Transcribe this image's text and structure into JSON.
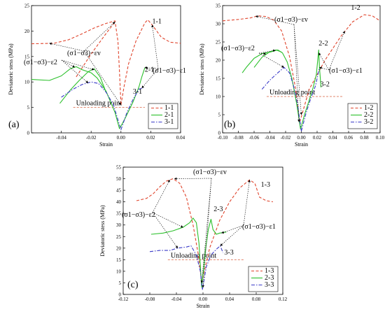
{
  "colors": {
    "series1": "#e0442c",
    "series2": "#2cc02c",
    "series3": "#3a3ac8",
    "unload": "#d86040"
  },
  "annotations": {
    "eps2": "(σ1−σ3)−ε2",
    "epsv": "(σ1−σ3)−εv",
    "eps1": "(σ1−σ3)−ε1",
    "unloading": "Unloading point"
  },
  "chart_data": [
    {
      "type": "line",
      "panel_label": "(a)",
      "xlabel": "Strain",
      "ylabel": "Deviatoric stess (MPa)",
      "xlim": [
        -0.06,
        0.04
      ],
      "ylim": [
        0,
        25
      ],
      "xticks": [
        "-0.04",
        "-0.02",
        "0.00",
        "0.02",
        "0.04"
      ],
      "xtick_values": [
        -0.04,
        -0.02,
        0.0,
        0.02,
        0.04
      ],
      "yticks": [
        "0",
        "5",
        "10",
        "15",
        "20",
        "25"
      ],
      "ytick_values": [
        0,
        5,
        10,
        15,
        20,
        25
      ],
      "unloading_level": 5,
      "legend": [
        "1-1",
        "2-1",
        "3-1"
      ],
      "curve_labels": [
        {
          "text": "1-1",
          "x": 0.021,
          "y": 21.5
        },
        {
          "text": "2-1",
          "x": 0.016,
          "y": 12.0
        },
        {
          "text": "3-1",
          "x": 0.008,
          "y": 7.7
        }
      ],
      "series": [
        {
          "name": "1-1",
          "style": "dash",
          "color": "series1",
          "segments": [
            [
              [
                -0.06,
                17.5
              ],
              [
                -0.045,
                17.6
              ],
              [
                -0.035,
                18.3
              ],
              [
                -0.025,
                19.6
              ],
              [
                -0.018,
                20.6
              ],
              [
                -0.01,
                21.5
              ],
              [
                -0.004,
                22.0
              ],
              [
                -0.002,
                18.0
              ],
              [
                -0.001,
                12.0
              ],
              [
                0.0,
                5.5
              ]
            ],
            [
              [
                -0.03,
                11.0
              ],
              [
                -0.02,
                15.5
              ],
              [
                -0.01,
                19.5
              ],
              [
                -0.004,
                21.8
              ]
            ],
            [
              [
                0.0,
                5.5
              ],
              [
                0.002,
                9.0
              ],
              [
                0.005,
                13.5
              ],
              [
                0.01,
                18.0
              ],
              [
                0.016,
                21.6
              ],
              [
                0.018,
                22.2
              ],
              [
                0.021,
                21.2
              ],
              [
                0.027,
                18.8
              ],
              [
                0.033,
                17.8
              ],
              [
                0.04,
                17.6
              ]
            ]
          ]
        },
        {
          "name": "2-1",
          "style": "solid",
          "color": "series2",
          "segments": [
            [
              [
                -0.06,
                10.5
              ],
              [
                -0.048,
                10.3
              ],
              [
                -0.04,
                11.2
              ],
              [
                -0.034,
                12.6
              ],
              [
                -0.03,
                13.0
              ],
              [
                -0.026,
                12.4
              ],
              [
                -0.02,
                11.8
              ],
              [
                -0.016,
                10.8
              ],
              [
                -0.01,
                8.2
              ],
              [
                -0.004,
                4.0
              ],
              [
                -0.001,
                0.8
              ]
            ],
            [
              [
                -0.041,
                5.8
              ],
              [
                -0.034,
                8.4
              ],
              [
                -0.028,
                10.3
              ],
              [
                -0.022,
                12.0
              ],
              [
                -0.018,
                12.6
              ],
              [
                -0.014,
                11.0
              ],
              [
                -0.01,
                8.0
              ]
            ],
            [
              [
                -0.001,
                0.8
              ],
              [
                0.003,
                3.0
              ],
              [
                0.008,
                6.0
              ],
              [
                0.012,
                9.0
              ],
              [
                0.014,
                11.0
              ],
              [
                0.016,
                12.8
              ]
            ]
          ]
        },
        {
          "name": "3-1",
          "style": "dashdot",
          "color": "series3",
          "segments": [
            [
              [
                -0.04,
                7.0
              ],
              [
                -0.032,
                8.6
              ],
              [
                -0.026,
                9.5
              ],
              [
                -0.02,
                10.0
              ],
              [
                -0.015,
                9.7
              ],
              [
                -0.01,
                8.0
              ],
              [
                -0.005,
                5.5
              ],
              [
                0.0,
                0.6
              ]
            ],
            [
              [
                0.0,
                0.6
              ],
              [
                0.004,
                4.0
              ],
              [
                0.008,
                6.5
              ],
              [
                0.012,
                8.6
              ],
              [
                0.015,
                8.8
              ]
            ]
          ]
        }
      ]
    },
    {
      "type": "line",
      "panel_label": "(b)",
      "xlabel": "Strain",
      "ylabel": "Deviatoric stess (MPa)",
      "xlim": [
        -0.1,
        0.1
      ],
      "ylim": [
        0,
        35
      ],
      "xticks": [
        "-0.10",
        "-0.08",
        "-0.06",
        "-0.04",
        "-0.02",
        "0.00",
        "0.02",
        "0.04",
        "0.06",
        "0.08",
        "0.10"
      ],
      "xtick_values": [
        -0.1,
        -0.08,
        -0.06,
        -0.04,
        -0.02,
        0.0,
        0.02,
        0.04,
        0.06,
        0.08,
        0.1
      ],
      "yticks": [
        "0",
        "5",
        "10",
        "15",
        "20",
        "25",
        "30",
        "35"
      ],
      "ytick_values": [
        0,
        5,
        10,
        15,
        20,
        25,
        30,
        35
      ],
      "unloading_level": 10,
      "legend": [
        "1-2",
        "2-2",
        "3-2"
      ],
      "curve_labels": [
        {
          "text": "1-2",
          "x": 0.063,
          "y": 33.8
        },
        {
          "text": "2-2",
          "x": 0.022,
          "y": 24.0
        },
        {
          "text": "3-2",
          "x": 0.024,
          "y": 12.8
        }
      ],
      "series": [
        {
          "name": "1-2",
          "style": "dash",
          "color": "series1",
          "segments": [
            [
              [
                -0.1,
                30.8
              ],
              [
                -0.08,
                31.2
              ],
              [
                -0.065,
                31.6
              ],
              [
                -0.055,
                32.2
              ],
              [
                -0.045,
                32.0
              ],
              [
                -0.035,
                31.0
              ],
              [
                -0.025,
                28.0
              ],
              [
                -0.015,
                21.0
              ],
              [
                -0.008,
                13.0
              ],
              [
                -0.002,
                3.0
              ]
            ],
            [
              [
                -0.002,
                3.0
              ],
              [
                0.01,
                12.0
              ],
              [
                0.03,
                20.0
              ],
              [
                0.05,
                26.5
              ],
              [
                0.065,
                30.5
              ],
              [
                0.08,
                32.5
              ],
              [
                0.09,
                32.2
              ],
              [
                0.1,
                30.8
              ]
            ]
          ]
        },
        {
          "name": "2-2",
          "style": "solid",
          "color": "series2",
          "segments": [
            [
              [
                -0.075,
                16.5
              ],
              [
                -0.07,
                18.0
              ],
              [
                -0.06,
                20.5
              ],
              [
                -0.05,
                21.8
              ],
              [
                -0.04,
                22.2
              ],
              [
                -0.03,
                22.8
              ],
              [
                -0.024,
                22.0
              ],
              [
                -0.018,
                19.5
              ],
              [
                -0.012,
                15.0
              ],
              [
                -0.006,
                8.0
              ],
              [
                -0.001,
                1.0
              ]
            ],
            [
              [
                -0.06,
                18.0
              ],
              [
                -0.05,
                20.8
              ],
              [
                -0.04,
                22.3
              ],
              [
                -0.032,
                22.8
              ],
              [
                -0.025,
                22.2
              ]
            ],
            [
              [
                -0.001,
                1.0
              ],
              [
                0.004,
                5.0
              ],
              [
                0.01,
                9.0
              ],
              [
                0.015,
                12.5
              ],
              [
                0.019,
                16.0
              ],
              [
                0.022,
                22.8
              ],
              [
                0.023,
                18.0
              ],
              [
                0.025,
                12.5
              ]
            ]
          ]
        },
        {
          "name": "3-2",
          "style": "dashdot",
          "color": "series3",
          "segments": [
            [
              [
                -0.05,
                12.0
              ],
              [
                -0.04,
                14.5
              ],
              [
                -0.03,
                16.5
              ],
              [
                -0.022,
                18.0
              ],
              [
                -0.015,
                16.5
              ],
              [
                -0.01,
                13.0
              ],
              [
                -0.005,
                8.0
              ],
              [
                0.0,
                0.5
              ]
            ],
            [
              [
                0.0,
                0.5
              ],
              [
                0.006,
                5.5
              ],
              [
                0.012,
                9.5
              ],
              [
                0.018,
                13.0
              ],
              [
                0.022,
                17.0
              ],
              [
                0.023,
                18.0
              ]
            ]
          ]
        }
      ]
    },
    {
      "type": "line",
      "panel_label": "(c)",
      "xlabel": "Strain",
      "ylabel": "Deviatoric stess (MPa)",
      "xlim": [
        -0.12,
        0.12
      ],
      "ylim": [
        0,
        55
      ],
      "xticks": [
        "-0.12",
        "-0.08",
        "-0.04",
        "0.00",
        "0.04",
        "0.08",
        "0.12"
      ],
      "xtick_values": [
        -0.12,
        -0.08,
        -0.04,
        0.0,
        0.04,
        0.08,
        0.12
      ],
      "yticks": [
        "0",
        "5",
        "10",
        "15",
        "20",
        "25",
        "30",
        "35",
        "40",
        "45",
        "50",
        "55"
      ],
      "ytick_values": [
        0,
        5,
        10,
        15,
        20,
        25,
        30,
        35,
        40,
        45,
        50,
        55
      ],
      "unloading_level": 15,
      "legend": [
        "1-3",
        "2-3",
        "3-3"
      ],
      "curve_labels": [
        {
          "text": "1-3",
          "x": 0.087,
          "y": 46.5
        },
        {
          "text": "2-3",
          "x": 0.016,
          "y": 36.0
        },
        {
          "text": "3-3",
          "x": 0.032,
          "y": 17.2
        }
      ],
      "series": [
        {
          "name": "1-3",
          "style": "dash",
          "color": "series1",
          "segments": [
            [
              [
                -0.1,
                40.5
              ],
              [
                -0.085,
                41.5
              ],
              [
                -0.075,
                43.5
              ],
              [
                -0.065,
                46.5
              ],
              [
                -0.055,
                49.0
              ],
              [
                -0.045,
                50.0
              ],
              [
                -0.035,
                48.0
              ],
              [
                -0.025,
                42.0
              ],
              [
                -0.015,
                30.0
              ],
              [
                -0.007,
                17.0
              ],
              [
                -0.002,
                5.0
              ]
            ],
            [
              [
                -0.002,
                5.0
              ],
              [
                0.01,
                20.0
              ],
              [
                0.025,
                32.0
              ],
              [
                0.04,
                40.0
              ],
              [
                0.055,
                46.0
              ],
              [
                0.07,
                49.5
              ],
              [
                0.078,
                48.0
              ],
              [
                0.085,
                42.0
              ],
              [
                0.095,
                40.5
              ],
              [
                0.105,
                40.0
              ]
            ]
          ]
        },
        {
          "name": "2-3",
          "style": "solid",
          "color": "series2",
          "segments": [
            [
              [
                -0.078,
                26.0
              ],
              [
                -0.06,
                26.5
              ],
              [
                -0.045,
                27.5
              ],
              [
                -0.03,
                29.0
              ],
              [
                -0.02,
                31.0
              ],
              [
                -0.015,
                33.0
              ],
              [
                -0.01,
                31.0
              ],
              [
                -0.006,
                22.0
              ],
              [
                -0.002,
                3.0
              ]
            ],
            [
              [
                -0.002,
                3.0
              ],
              [
                0.004,
                20.0
              ],
              [
                0.008,
                28.0
              ],
              [
                0.012,
                32.5
              ],
              [
                0.015,
                28.0
              ],
              [
                0.02,
                26.0
              ],
              [
                0.025,
                26.5
              ],
              [
                0.035,
                27.0
              ]
            ]
          ]
        },
        {
          "name": "3-3",
          "style": "dashdot",
          "color": "series3",
          "segments": [
            [
              [
                -0.08,
                18.5
              ],
              [
                -0.065,
                19.0
              ],
              [
                -0.05,
                19.0
              ],
              [
                -0.038,
                20.0
              ],
              [
                -0.025,
                20.5
              ],
              [
                -0.018,
                21.0
              ],
              [
                -0.01,
                17.0
              ],
              [
                -0.004,
                10.0
              ],
              [
                -0.001,
                2.0
              ]
            ],
            [
              [
                -0.001,
                2.0
              ],
              [
                0.005,
                12.0
              ],
              [
                0.012,
                17.0
              ],
              [
                0.02,
                19.5
              ],
              [
                0.026,
                21.0
              ],
              [
                0.03,
                18.0
              ]
            ]
          ]
        }
      ]
    }
  ]
}
